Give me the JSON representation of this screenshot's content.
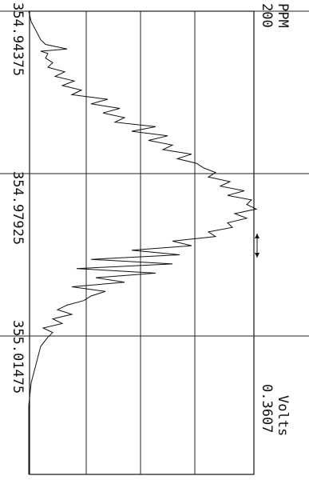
{
  "chart_data": {
    "type": "line",
    "x_label": "",
    "x_unit": "PPM",
    "x_unit_value": "200",
    "y_unit": "Volts",
    "y_unit_value": "0.3607",
    "x_tick_labels": [
      "354.94375",
      "354.97925",
      "355.01475"
    ],
    "x_ticks": [
      354.94375,
      354.97925,
      355.01475
    ],
    "xlim": [
      354.94375,
      355.045
    ],
    "ylim": [
      0,
      1
    ],
    "grid": true,
    "series": [
      {
        "x": [
          354.94375,
          354.946,
          354.948,
          354.95,
          354.951,
          354.952,
          354.9525,
          354.953,
          354.954,
          354.955,
          354.956,
          354.957,
          354.958,
          354.959,
          354.96,
          354.961,
          354.962,
          354.963,
          354.964,
          354.965,
          354.966,
          354.967,
          354.968,
          354.969,
          354.97,
          354.971,
          354.972,
          354.973,
          354.974,
          354.975,
          354.976,
          354.977,
          354.978,
          354.979,
          354.98,
          354.981,
          354.982,
          354.983,
          354.984,
          354.985,
          354.986,
          354.987,
          354.988,
          354.989,
          354.99,
          354.991,
          354.992,
          354.993,
          354.994,
          354.995,
          354.996,
          354.997,
          354.998,
          354.999,
          355.0,
          355.001,
          355.002,
          355.003,
          355.004,
          355.005,
          355.006,
          355.007,
          355.008,
          355.009,
          355.01,
          355.011,
          355.012,
          355.013,
          355.014,
          355.015,
          355.017,
          355.019,
          355.021,
          355.023,
          355.025,
          355.03,
          355.035,
          355.04,
          355.045
        ],
        "y": [
          0.02,
          0.03,
          0.05,
          0.07,
          0.09,
          0.18,
          0.07,
          0.1,
          0.09,
          0.12,
          0.1,
          0.17,
          0.13,
          0.21,
          0.16,
          0.24,
          0.2,
          0.35,
          0.28,
          0.4,
          0.33,
          0.42,
          0.38,
          0.55,
          0.45,
          0.6,
          0.52,
          0.62,
          0.58,
          0.7,
          0.64,
          0.72,
          0.75,
          0.8,
          0.77,
          0.86,
          0.82,
          0.92,
          0.85,
          0.95,
          0.93,
          0.97,
          0.88,
          0.93,
          0.85,
          0.87,
          0.77,
          0.8,
          0.62,
          0.7,
          0.45,
          0.65,
          0.28,
          0.62,
          0.22,
          0.55,
          0.3,
          0.42,
          0.2,
          0.34,
          0.28,
          0.25,
          0.18,
          0.14,
          0.2,
          0.12,
          0.16,
          0.08,
          0.12,
          0.1,
          0.07,
          0.06,
          0.05,
          0.04,
          0.03,
          0.02,
          0.02,
          0.02,
          0.02
        ]
      }
    ]
  }
}
